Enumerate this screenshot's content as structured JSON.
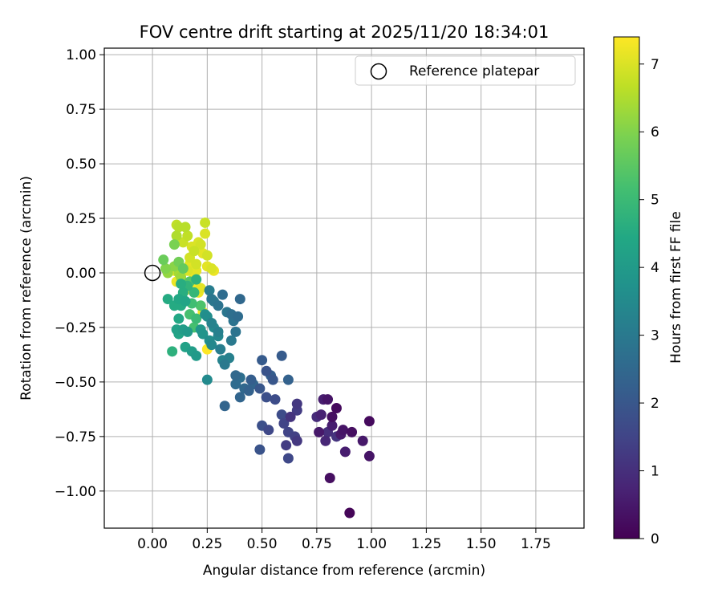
{
  "chart_data": {
    "type": "scatter",
    "title": "FOV centre drift starting at 2025/11/20 18:34:01",
    "xlabel": "Angular distance from reference (arcmin)",
    "ylabel": "Rotation from reference (arcmin)",
    "xlim": [
      -0.22,
      1.97
    ],
    "ylim": [
      -1.17,
      1.03
    ],
    "x_ticks": [
      0.0,
      0.25,
      0.5,
      0.75,
      1.0,
      1.25,
      1.5,
      1.75
    ],
    "x_tick_labels": [
      "0.00",
      "0.25",
      "0.50",
      "0.75",
      "1.00",
      "1.25",
      "1.50",
      "1.75"
    ],
    "y_ticks": [
      1.0,
      0.75,
      0.5,
      0.25,
      0.0,
      -0.25,
      -0.5,
      -0.75,
      -1.0
    ],
    "y_tick_labels": [
      "1.00",
      "0.75",
      "0.50",
      "0.25",
      "0.00",
      "−0.25",
      "−0.50",
      "−0.75",
      "−1.00"
    ],
    "grid": true,
    "legend": {
      "position": "top-right",
      "entries": [
        "Reference platepar"
      ]
    },
    "colorbar": {
      "label": "Hours from first FF file",
      "range": [
        0,
        7.4
      ],
      "ticks": [
        0,
        1,
        2,
        3,
        4,
        5,
        6,
        7
      ],
      "tick_labels": [
        "0",
        "1",
        "2",
        "3",
        "4",
        "5",
        "6",
        "7"
      ],
      "colormap": "viridis"
    },
    "reference_point": {
      "name": "Reference platepar",
      "x": 0.0,
      "y": 0.0
    },
    "series": [
      {
        "name": "",
        "points": [
          [
            0.9,
            -1.1,
            0.1
          ],
          [
            0.81,
            -0.94,
            0.3
          ],
          [
            0.99,
            -0.84,
            0.4
          ],
          [
            0.99,
            -0.68,
            0.2
          ],
          [
            0.96,
            -0.77,
            0.5
          ],
          [
            0.91,
            -0.73,
            0.3
          ],
          [
            0.88,
            -0.82,
            0.6
          ],
          [
            0.87,
            -0.72,
            0.4
          ],
          [
            0.86,
            -0.74,
            0.5
          ],
          [
            0.84,
            -0.62,
            0.2
          ],
          [
            0.82,
            -0.66,
            0.3
          ],
          [
            0.8,
            -0.58,
            0.4
          ],
          [
            0.78,
            -0.58,
            0.6
          ],
          [
            0.77,
            -0.65,
            0.7
          ],
          [
            0.76,
            -0.73,
            0.5
          ],
          [
            0.79,
            -0.77,
            0.8
          ],
          [
            0.75,
            -0.66,
            0.9
          ],
          [
            0.82,
            -0.7,
            0.6
          ],
          [
            0.8,
            -0.73,
            1.0
          ],
          [
            0.84,
            -0.75,
            1.1
          ],
          [
            0.66,
            -0.6,
            1.2
          ],
          [
            0.66,
            -0.63,
            1.3
          ],
          [
            0.63,
            -0.66,
            1.1
          ],
          [
            0.65,
            -0.75,
            1.4
          ],
          [
            0.66,
            -0.77,
            1.2
          ],
          [
            0.62,
            -0.73,
            1.5
          ],
          [
            0.61,
            -0.79,
            1.3
          ],
          [
            0.62,
            -0.85,
            1.6
          ],
          [
            0.59,
            -0.65,
            1.7
          ],
          [
            0.6,
            -0.69,
            1.5
          ],
          [
            0.5,
            -0.7,
            1.8
          ],
          [
            0.53,
            -0.72,
            1.6
          ],
          [
            0.49,
            -0.81,
            1.9
          ],
          [
            0.56,
            -0.58,
            1.7
          ],
          [
            0.52,
            -0.57,
            1.8
          ],
          [
            0.49,
            -0.53,
            2.0
          ],
          [
            0.5,
            -0.4,
            2.1
          ],
          [
            0.52,
            -0.45,
            1.9
          ],
          [
            0.54,
            -0.47,
            2.2
          ],
          [
            0.55,
            -0.49,
            2.0
          ],
          [
            0.59,
            -0.38,
            2.1
          ],
          [
            0.62,
            -0.49,
            2.3
          ],
          [
            0.45,
            -0.49,
            2.2
          ],
          [
            0.46,
            -0.51,
            2.4
          ],
          [
            0.44,
            -0.54,
            2.3
          ],
          [
            0.42,
            -0.53,
            2.5
          ],
          [
            0.4,
            -0.57,
            2.4
          ],
          [
            0.38,
            -0.51,
            2.6
          ],
          [
            0.38,
            -0.47,
            2.5
          ],
          [
            0.4,
            -0.48,
            2.7
          ],
          [
            0.33,
            -0.61,
            2.4
          ],
          [
            0.37,
            -0.22,
            2.8
          ],
          [
            0.39,
            -0.2,
            2.6
          ],
          [
            0.4,
            -0.12,
            2.5
          ],
          [
            0.36,
            -0.19,
            2.7
          ],
          [
            0.34,
            -0.18,
            2.9
          ],
          [
            0.32,
            -0.1,
            2.6
          ],
          [
            0.3,
            -0.15,
            2.8
          ],
          [
            0.28,
            -0.13,
            3.0
          ],
          [
            0.27,
            -0.12,
            2.9
          ],
          [
            0.26,
            -0.08,
            3.1
          ],
          [
            0.38,
            -0.27,
            2.8
          ],
          [
            0.36,
            -0.31,
            3.0
          ],
          [
            0.35,
            -0.39,
            3.2
          ],
          [
            0.33,
            -0.42,
            3.0
          ],
          [
            0.32,
            -0.4,
            3.3
          ],
          [
            0.31,
            -0.35,
            3.1
          ],
          [
            0.3,
            -0.29,
            3.4
          ],
          [
            0.3,
            -0.27,
            3.2
          ],
          [
            0.28,
            -0.25,
            3.5
          ],
          [
            0.27,
            -0.23,
            3.3
          ],
          [
            0.25,
            -0.2,
            3.6
          ],
          [
            0.24,
            -0.19,
            3.7
          ],
          [
            0.27,
            -0.33,
            3.4
          ],
          [
            0.26,
            -0.31,
            3.6
          ],
          [
            0.23,
            -0.28,
            3.8
          ],
          [
            0.25,
            -0.49,
            3.5
          ],
          [
            0.22,
            -0.26,
            3.9
          ],
          [
            0.2,
            -0.38,
            4.0
          ],
          [
            0.18,
            -0.36,
            4.1
          ],
          [
            0.15,
            -0.34,
            4.2
          ],
          [
            0.16,
            -0.27,
            4.0
          ],
          [
            0.14,
            -0.26,
            4.1
          ],
          [
            0.12,
            -0.28,
            4.3
          ],
          [
            0.11,
            -0.26,
            4.2
          ],
          [
            0.12,
            -0.21,
            4.4
          ],
          [
            0.13,
            -0.15,
            4.5
          ],
          [
            0.15,
            -0.13,
            4.3
          ],
          [
            0.14,
            -0.09,
            4.6
          ],
          [
            0.12,
            -0.12,
            4.4
          ],
          [
            0.1,
            -0.15,
            4.5
          ],
          [
            0.09,
            -0.36,
            4.7
          ],
          [
            0.07,
            -0.12,
            4.5
          ],
          [
            0.13,
            -0.05,
            4.6
          ],
          [
            0.16,
            -0.06,
            4.8
          ],
          [
            0.2,
            -0.03,
            4.7
          ],
          [
            0.19,
            -0.09,
            4.9
          ],
          [
            0.2,
            -0.21,
            5.0
          ],
          [
            0.18,
            -0.14,
            5.1
          ],
          [
            0.17,
            -0.19,
            5.2
          ],
          [
            0.22,
            -0.15,
            5.3
          ],
          [
            0.19,
            -0.25,
            5.2
          ],
          [
            0.17,
            -0.04,
            5.4
          ],
          [
            0.14,
            0.02,
            5.6
          ],
          [
            0.12,
            0.05,
            5.8
          ],
          [
            0.1,
            0.13,
            5.9
          ],
          [
            0.05,
            0.06,
            5.7
          ],
          [
            0.06,
            0.02,
            6.0
          ],
          [
            0.07,
            0.0,
            6.2
          ],
          [
            0.1,
            0.03,
            6.1
          ],
          [
            0.12,
            0.0,
            6.4
          ],
          [
            0.13,
            -0.02,
            6.3
          ],
          [
            0.11,
            0.17,
            6.5
          ],
          [
            0.12,
            0.21,
            6.6
          ],
          [
            0.11,
            0.22,
            6.7
          ],
          [
            0.15,
            0.21,
            6.6
          ],
          [
            0.14,
            0.14,
            6.8
          ],
          [
            0.16,
            0.17,
            6.7
          ],
          [
            0.17,
            0.07,
            6.9
          ],
          [
            0.18,
            0.12,
            7.0
          ],
          [
            0.19,
            0.1,
            6.8
          ],
          [
            0.2,
            0.04,
            6.9
          ],
          [
            0.21,
            0.14,
            7.0
          ],
          [
            0.22,
            0.13,
            6.9
          ],
          [
            0.23,
            0.09,
            7.1
          ],
          [
            0.24,
            0.23,
            6.8
          ],
          [
            0.24,
            0.18,
            7.0
          ],
          [
            0.25,
            0.08,
            6.9
          ],
          [
            0.25,
            0.03,
            7.1
          ],
          [
            0.27,
            0.02,
            7.0
          ],
          [
            0.28,
            0.01,
            7.2
          ],
          [
            0.2,
            0.01,
            7.1
          ],
          [
            0.19,
            -0.01,
            7.2
          ],
          [
            0.16,
            0.01,
            7.0
          ],
          [
            0.17,
            0.04,
            7.1
          ],
          [
            0.22,
            -0.07,
            7.1
          ],
          [
            0.21,
            -0.09,
            7.2
          ],
          [
            0.18,
            -0.06,
            7.3
          ],
          [
            0.15,
            -0.08,
            7.2
          ],
          [
            0.23,
            -0.18,
            7.3
          ],
          [
            0.25,
            -0.35,
            7.4
          ],
          [
            0.11,
            -0.04,
            7.2
          ],
          [
            0.1,
            0.01,
            7.3
          ]
        ]
      }
    ]
  }
}
